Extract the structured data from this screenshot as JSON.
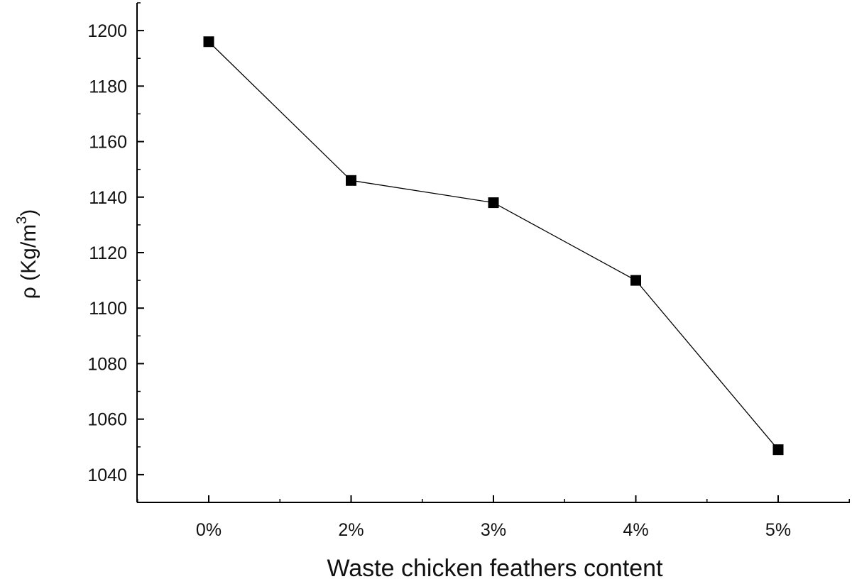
{
  "chart_data": {
    "type": "line",
    "categories": [
      "0%",
      "2%",
      "3%",
      "4%",
      "5%"
    ],
    "series": [
      {
        "values": [
          1196,
          1146,
          1138,
          1110,
          1049
        ]
      }
    ],
    "xlabel": "Waste chicken feathers content",
    "ylabel": {
      "main": "ρ (Kg/m",
      "sup": "3",
      "close": ")"
    },
    "ylim": [
      1030,
      1210
    ],
    "yticks": [
      1040,
      1060,
      1080,
      1100,
      1120,
      1140,
      1160,
      1180,
      1200
    ],
    "grid": false,
    "legend": "none",
    "marker": "square",
    "colors": {
      "line": "#000000",
      "marker": "#000000"
    }
  }
}
